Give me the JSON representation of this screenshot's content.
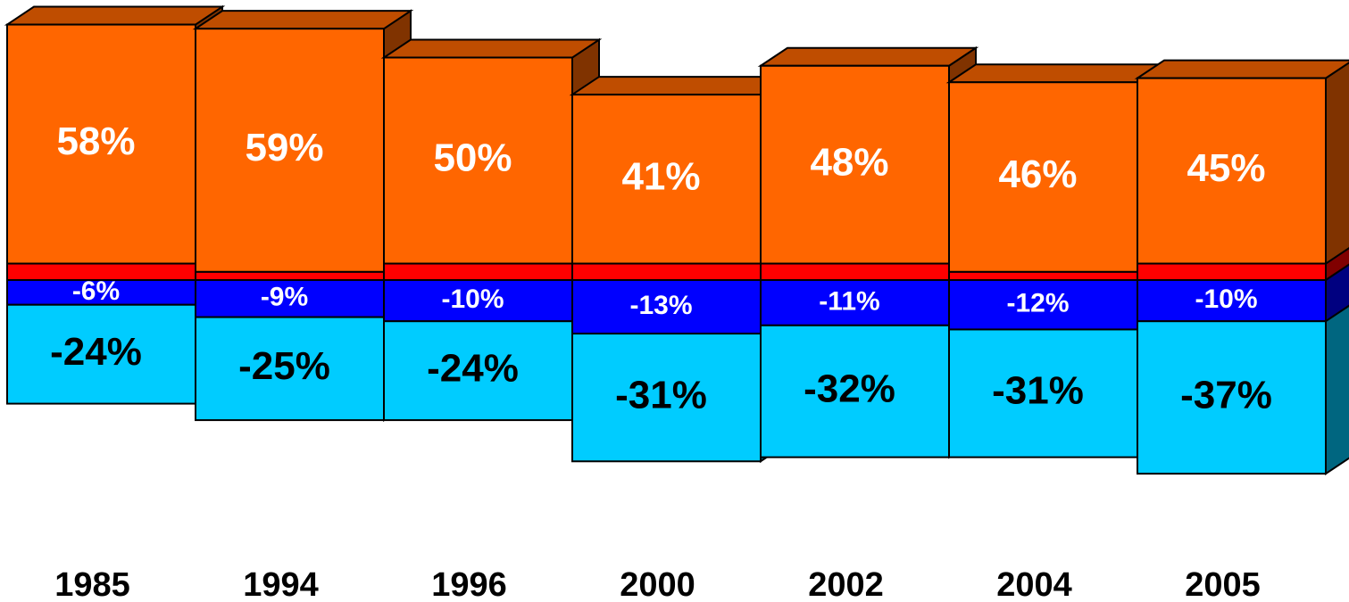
{
  "chart_data": {
    "type": "stacked-bar-3d",
    "categories": [
      "1985",
      "1994",
      "1996",
      "2000",
      "2002",
      "2004",
      "2005"
    ],
    "series": [
      {
        "color": "#ff6600",
        "label_color": "#ffffff",
        "values": [
          58,
          59,
          50,
          41,
          48,
          46,
          45
        ],
        "value_labels": [
          "58%",
          "59%",
          "50%",
          "41%",
          "48%",
          "46%",
          "45%"
        ]
      },
      {
        "color": "#ff0000",
        "values": [
          4,
          2,
          4,
          4,
          4,
          2,
          4
        ]
      },
      {
        "color": "#0000ff",
        "label_color": "#ffffff",
        "values": [
          -6,
          -9,
          -10,
          -13,
          -11,
          -12,
          -10
        ],
        "value_labels": [
          "-6%",
          "-9%",
          "-10%",
          "-13%",
          "-11%",
          "-12%",
          "-10%"
        ]
      },
      {
        "color": "#00ccff",
        "label_color": "#000000",
        "values": [
          -24,
          -25,
          -24,
          -31,
          -32,
          -31,
          -37
        ],
        "value_labels": [
          "-24%",
          "-25%",
          "-24%",
          "-31%",
          "-32%",
          "-31%",
          "-37%"
        ]
      }
    ]
  }
}
